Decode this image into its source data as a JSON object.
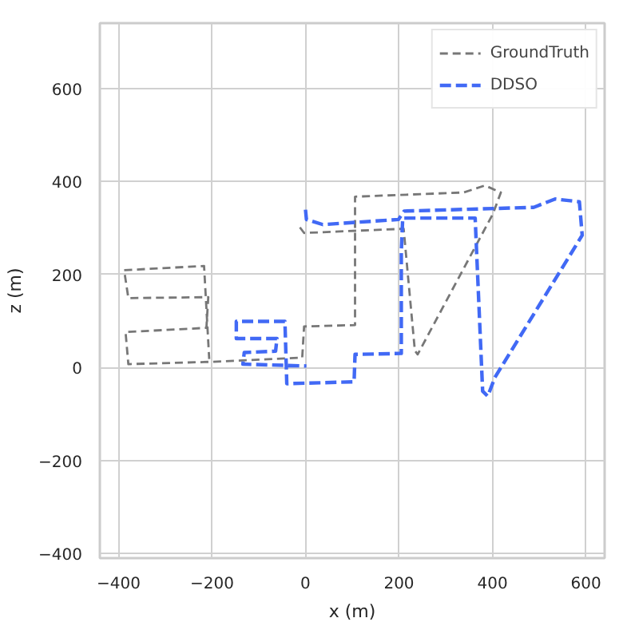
{
  "chart_data": {
    "type": "line",
    "xlabel": "x (m)",
    "ylabel": "z (m)",
    "xlim": [
      -440,
      640
    ],
    "ylim": [
      -410,
      740
    ],
    "xticks": [
      -400,
      -200,
      0,
      200,
      400,
      600
    ],
    "yticks": [
      -400,
      -200,
      0,
      200,
      400,
      600
    ],
    "grid": true,
    "legend": "top right",
    "line_style": "dashed",
    "marker": "none",
    "series": [
      {
        "name": "GroundTruth",
        "color": "#777777",
        "x": [
          -12,
          -3,
          210,
          234,
          240,
          401,
          418,
          384,
          338,
          106,
          106,
          -3,
          -7,
          -200,
          -379,
          -385,
          -212,
          -208,
          -379,
          -388,
          -217,
          -206
        ],
        "values": [
          301,
          289,
          298,
          36,
          28,
          330,
          376,
          391,
          376,
          367,
          91,
          88,
          21,
          12,
          7,
          76,
          85,
          151,
          149,
          209,
          218,
          18
        ]
      },
      {
        "name": "DDSO",
        "color": "#4169f5",
        "x": [
          0,
          2,
          37,
          199,
          211,
          488,
          534,
          586,
          592,
          405,
          390,
          379,
          363,
          208,
          205,
          205,
          106,
          104,
          -40,
          -44,
          -148,
          -148,
          -61,
          -64,
          -131,
          -134,
          2
        ],
        "values": [
          339,
          318,
          307,
          318,
          336,
          344,
          362,
          356,
          284,
          -22,
          -62,
          -51,
          321,
          321,
          249,
          30,
          28,
          -31,
          -35,
          99,
          99,
          62,
          62,
          35,
          32,
          7,
          3
        ]
      }
    ]
  }
}
